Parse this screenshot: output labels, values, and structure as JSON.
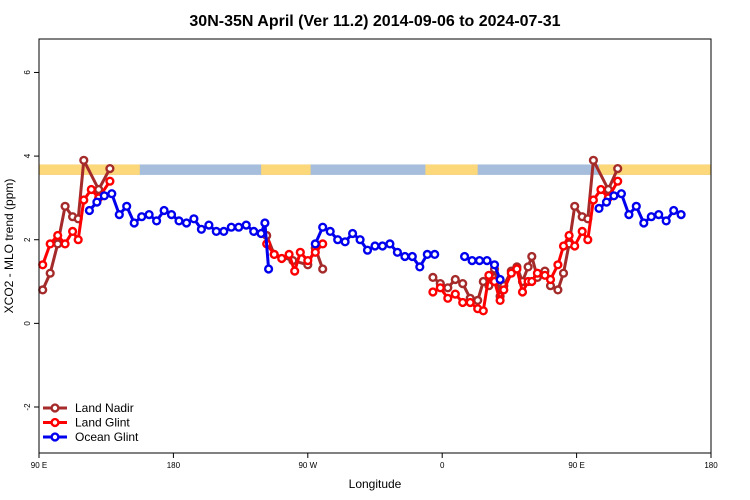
{
  "chart_data": {
    "type": "line",
    "title": "30N-35N April (Ver 11.2)   2014-09-06 to 2024-07-31",
    "xlabel": "Longitude",
    "ylabel": "XCO2 - MLO trend (ppm)",
    "xlim": [
      90,
      450
    ],
    "ylim": [
      -3.1,
      6.8
    ],
    "x_ticks": [
      {
        "value": 90,
        "label": "90 E"
      },
      {
        "value": 162,
        "label": "180"
      },
      {
        "value": 234,
        "label": "90 W"
      },
      {
        "value": 306,
        "label": "0"
      },
      {
        "value": 378,
        "label": "90 E"
      },
      {
        "value": 450,
        "label": "180"
      }
    ],
    "y_ticks": [
      {
        "value": -2,
        "label": "-2"
      },
      {
        "value": 0,
        "label": "0"
      },
      {
        "value": 2,
        "label": "2"
      },
      {
        "value": 4,
        "label": "4"
      },
      {
        "value": 6,
        "label": "6"
      }
    ],
    "land_strip": {
      "y_range": [
        3.55,
        3.8
      ],
      "ocean_color": "#a6bddb",
      "land_color": "#fdd87a",
      "land_segments": [
        [
          90,
          144
        ],
        [
          209,
          235.5
        ],
        [
          297,
          325
        ],
        [
          390,
          450
        ]
      ]
    },
    "legend_position": "bottom-left",
    "series": [
      {
        "name": "Land Nadir",
        "color": "#a52a2a",
        "segments": [
          [
            [
              92,
              0.8
            ],
            [
              96,
              1.2
            ],
            [
              100,
              1.9
            ],
            [
              104,
              2.8
            ],
            [
              108,
              2.55
            ],
            [
              111,
              2.5
            ],
            [
              114,
              3.9
            ],
            [
              122,
              3.2
            ],
            [
              128,
              3.7
            ]
          ],
          [
            [
              212,
              2.1
            ],
            [
              216,
              1.65
            ],
            [
              226,
              1.5
            ],
            [
              234,
              1.4
            ],
            [
              238,
              1.8
            ],
            [
              242,
              1.3
            ]
          ],
          [
            [
              301,
              1.1
            ],
            [
              305,
              0.95
            ],
            [
              309,
              0.85
            ],
            [
              313,
              1.05
            ],
            [
              317,
              0.95
            ],
            [
              321,
              0.6
            ],
            [
              325,
              0.55
            ],
            [
              328,
              1.0
            ],
            [
              331,
              0.9
            ],
            [
              334,
              1.3
            ],
            [
              337,
              0.65
            ],
            [
              339,
              0.9
            ],
            [
              343,
              1.25
            ],
            [
              346,
              1.35
            ],
            [
              349,
              1.0
            ],
            [
              352,
              1.35
            ],
            [
              354,
              1.6
            ],
            [
              357,
              1.1
            ],
            [
              361,
              1.25
            ],
            [
              364,
              0.9
            ],
            [
              368,
              0.8
            ],
            [
              371,
              1.2
            ],
            [
              374,
              1.9
            ],
            [
              377,
              2.8
            ],
            [
              381,
              2.55
            ],
            [
              384,
              2.5
            ],
            [
              387,
              3.9
            ],
            [
              395,
              3.2
            ],
            [
              400,
              3.7
            ]
          ]
        ]
      },
      {
        "name": "Land Glint",
        "color": "#ff0000",
        "segments": [
          [
            [
              92,
              1.4
            ],
            [
              96,
              1.9
            ],
            [
              100,
              2.1
            ],
            [
              104,
              1.9
            ],
            [
              108,
              2.2
            ],
            [
              111,
              2.0
            ],
            [
              114,
              2.95
            ],
            [
              118,
              3.2
            ],
            [
              122,
              3.0
            ],
            [
              128,
              3.4
            ]
          ],
          [
            [
              212,
              1.9
            ],
            [
              216,
              1.65
            ],
            [
              220,
              1.55
            ],
            [
              224,
              1.65
            ],
            [
              227,
              1.25
            ],
            [
              230,
              1.7
            ],
            [
              234,
              1.5
            ],
            [
              238,
              1.7
            ],
            [
              242,
              1.9
            ]
          ],
          [
            [
              301,
              0.75
            ],
            [
              305,
              0.85
            ],
            [
              309,
              0.6
            ],
            [
              313,
              0.7
            ],
            [
              317,
              0.5
            ],
            [
              321,
              0.5
            ],
            [
              325,
              0.35
            ],
            [
              328,
              0.3
            ],
            [
              331,
              1.15
            ],
            [
              334,
              1.0
            ],
            [
              337,
              0.55
            ],
            [
              339,
              0.8
            ],
            [
              343,
              1.2
            ],
            [
              346,
              1.3
            ],
            [
              349,
              0.75
            ],
            [
              352,
              1.0
            ],
            [
              354,
              1.0
            ],
            [
              357,
              1.2
            ],
            [
              361,
              1.15
            ],
            [
              364,
              1.05
            ],
            [
              368,
              1.4
            ],
            [
              371,
              1.85
            ],
            [
              374,
              2.1
            ],
            [
              377,
              1.85
            ],
            [
              381,
              2.2
            ],
            [
              384,
              2.0
            ],
            [
              387,
              2.95
            ],
            [
              391,
              3.2
            ],
            [
              395,
              3.0
            ],
            [
              400,
              3.4
            ]
          ]
        ]
      },
      {
        "name": "Ocean Glint",
        "color": "#0000ee",
        "segments": [
          [
            [
              117,
              2.7
            ],
            [
              121,
              2.9
            ],
            [
              125,
              3.05
            ],
            [
              129,
              3.1
            ],
            [
              133,
              2.6
            ],
            [
              137,
              2.8
            ],
            [
              141,
              2.4
            ],
            [
              145,
              2.55
            ],
            [
              149,
              2.6
            ],
            [
              153,
              2.45
            ],
            [
              157,
              2.7
            ],
            [
              161,
              2.6
            ],
            [
              165,
              2.45
            ],
            [
              169,
              2.4
            ],
            [
              173,
              2.5
            ],
            [
              177,
              2.25
            ],
            [
              181,
              2.35
            ],
            [
              185,
              2.2
            ],
            [
              189,
              2.2
            ],
            [
              193,
              2.3
            ],
            [
              197,
              2.3
            ],
            [
              201,
              2.35
            ],
            [
              205,
              2.2
            ],
            [
              209,
              2.15
            ],
            [
              211,
              2.4
            ],
            [
              213,
              1.3
            ]
          ],
          [
            [
              238,
              1.9
            ],
            [
              242,
              2.3
            ],
            [
              246,
              2.2
            ],
            [
              250,
              2.0
            ],
            [
              254,
              1.95
            ],
            [
              258,
              2.15
            ],
            [
              262,
              2.0
            ],
            [
              266,
              1.75
            ],
            [
              270,
              1.85
            ],
            [
              274,
              1.85
            ],
            [
              278,
              1.9
            ],
            [
              282,
              1.7
            ],
            [
              286,
              1.6
            ],
            [
              290,
              1.6
            ],
            [
              294,
              1.35
            ],
            [
              298,
              1.65
            ],
            [
              302,
              1.65
            ]
          ],
          [
            [
              318,
              1.6
            ],
            [
              322,
              1.5
            ],
            [
              326,
              1.5
            ],
            [
              330,
              1.5
            ],
            [
              334,
              1.4
            ],
            [
              337,
              1.05
            ]
          ],
          [
            [
              390,
              2.75
            ],
            [
              394,
              2.9
            ],
            [
              398,
              3.05
            ],
            [
              402,
              3.1
            ],
            [
              406,
              2.6
            ],
            [
              410,
              2.8
            ],
            [
              414,
              2.4
            ],
            [
              418,
              2.55
            ],
            [
              422,
              2.6
            ],
            [
              426,
              2.45
            ],
            [
              430,
              2.7
            ],
            [
              434,
              2.6
            ]
          ]
        ]
      }
    ]
  }
}
